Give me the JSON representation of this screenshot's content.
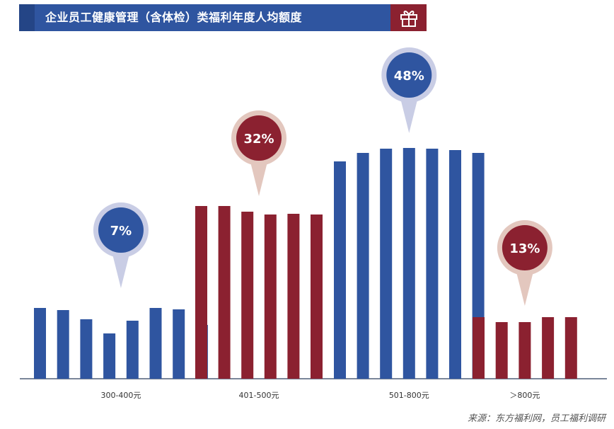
{
  "title": "企业员工健康管理（含体检）类福利年度人均额度",
  "source": "来源：东方福利网，员工福利调研",
  "colors": {
    "blue": "#2f55a0",
    "red": "#8b2130",
    "blue_halo": "#c9cde5",
    "red_halo": "#e3c7be"
  },
  "icons": {
    "title_icon": "gift-icon"
  },
  "chart_data": {
    "type": "bar",
    "categories": [
      "300-400元",
      "401-500元",
      "501-800元",
      "＞800元"
    ],
    "values": [
      7,
      32,
      48,
      13
    ],
    "value_labels": [
      "7%",
      "32%",
      "48%",
      "13%"
    ],
    "unit": "%",
    "colors": [
      "blue",
      "red",
      "blue",
      "red"
    ],
    "grid": false,
    "legend": "none"
  }
}
